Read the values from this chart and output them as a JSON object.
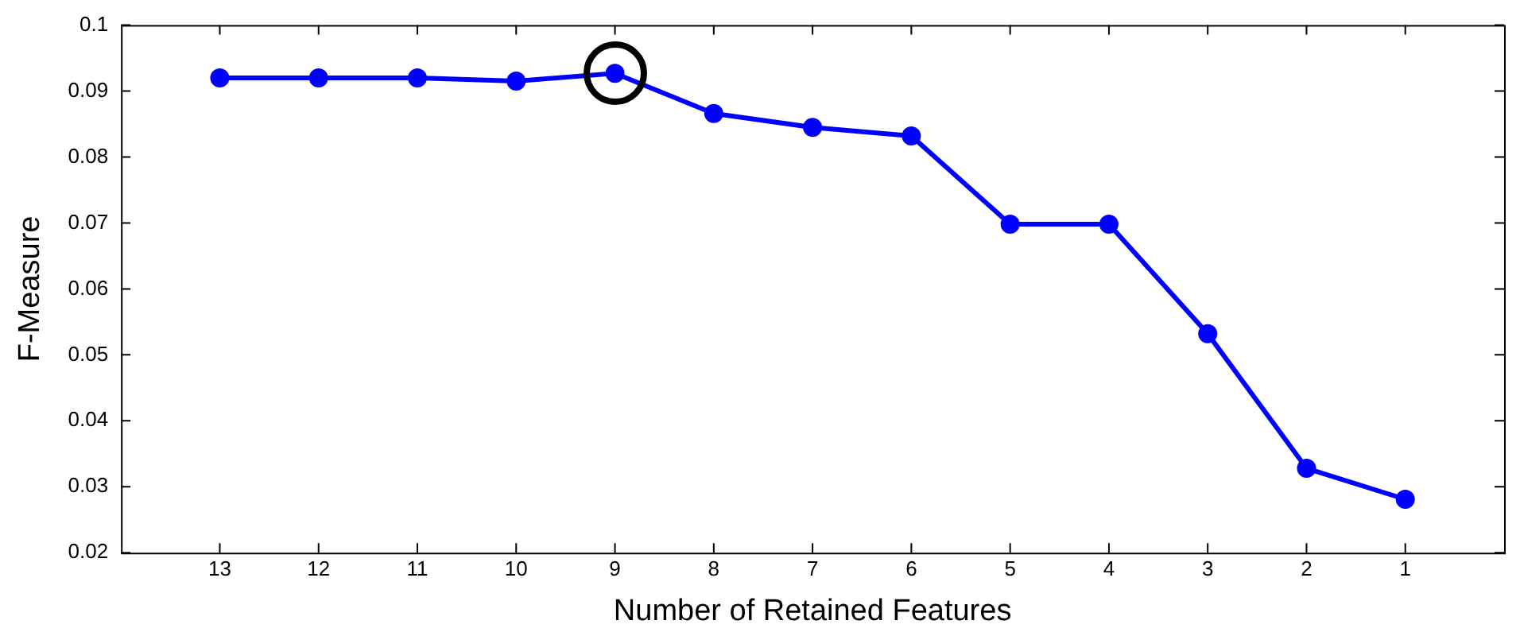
{
  "chart_data": {
    "type": "line",
    "xlabel": "Number of Retained Features",
    "ylabel": "F-Measure",
    "categories": [
      "13",
      "12",
      "11",
      "10",
      "9",
      "8",
      "7",
      "6",
      "5",
      "4",
      "3",
      "2",
      "1"
    ],
    "series": [
      {
        "color": "#0000ff",
        "values": [
          0.092,
          0.092,
          0.092,
          0.0915,
          0.0927,
          0.0866,
          0.0845,
          0.0832,
          0.0698,
          0.0698,
          0.0532,
          0.0328,
          0.0281
        ]
      }
    ],
    "ylim": [
      0.02,
      0.1
    ],
    "yticks": [
      {
        "value": 0.02,
        "label": "0.02"
      },
      {
        "value": 0.03,
        "label": "0.03"
      },
      {
        "value": 0.04,
        "label": "0.04"
      },
      {
        "value": 0.05,
        "label": "0.05"
      },
      {
        "value": 0.06,
        "label": "0.06"
      },
      {
        "value": 0.07,
        "label": "0.07"
      },
      {
        "value": 0.08,
        "label": "0.08"
      },
      {
        "value": 0.09,
        "label": "0.09"
      },
      {
        "value": 0.1,
        "label": "0.1"
      }
    ],
    "grid": false,
    "legend": false,
    "marker": "circle",
    "line_style": "solid"
  }
}
